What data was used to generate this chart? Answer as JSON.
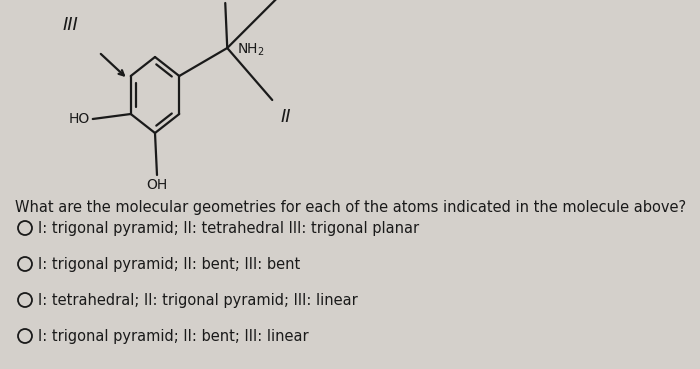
{
  "background_color": "#d4d0cb",
  "question": "What are the molecular geometries for each of the atoms indicated in the molecule above?",
  "options": [
    "I: trigonal pyramid; II: tetrahedral III: trigonal planar",
    "I: trigonal pyramid; II: bent; III: bent",
    "I: tetrahedral; II: trigonal pyramid; III: linear",
    "I: trigonal pyramid; II: bent; III: linear"
  ],
  "text_color": "#1a1a1a",
  "question_fontsize": 10.5,
  "option_fontsize": 10.5,
  "label_fontsize": 13,
  "mol_fontsize": 10,
  "lw": 1.6
}
